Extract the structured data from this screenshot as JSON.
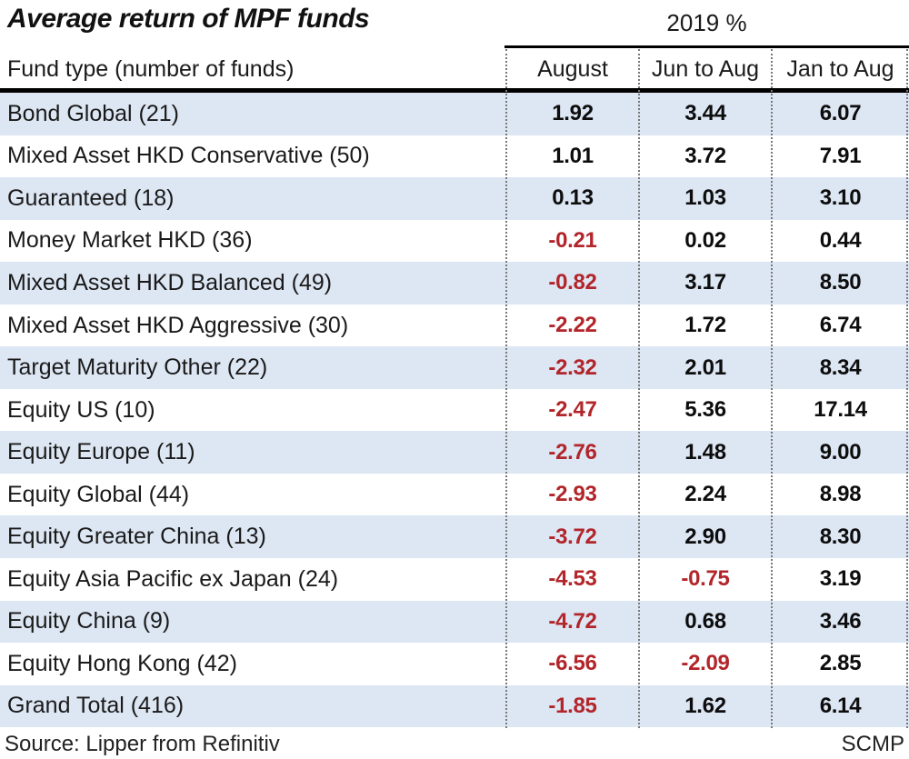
{
  "title": "Average return of MPF funds",
  "header": {
    "year_label": "2019 %",
    "fund_type_label": "Fund type (number of funds)",
    "columns": [
      "August",
      "Jun to Aug",
      "Jan to Aug"
    ]
  },
  "colors": {
    "alt_row_blue": "#dde6f3",
    "negative_red": "#b2252a",
    "text_black": "#1a1a1a",
    "rule_black": "#000000",
    "divider_gray": "#787878"
  },
  "footer": {
    "source": "Source: Lipper from Refinitiv",
    "credit": "SCMP"
  },
  "chart_data": {
    "type": "table",
    "title": "Average return of MPF funds",
    "unit": "2019 %",
    "columns": [
      "Fund type (number of funds)",
      "August",
      "Jun to Aug",
      "Jan to Aug"
    ],
    "rows": [
      {
        "fund_type": "Bond Global (21)",
        "august": "1.92",
        "jun_to_aug": "3.44",
        "jan_to_aug": "6.07"
      },
      {
        "fund_type": "Mixed Asset HKD Conservative (50)",
        "august": "1.01",
        "jun_to_aug": "3.72",
        "jan_to_aug": "7.91"
      },
      {
        "fund_type": "Guaranteed (18)",
        "august": "0.13",
        "jun_to_aug": "1.03",
        "jan_to_aug": "3.10"
      },
      {
        "fund_type": "Money Market HKD (36)",
        "august": "-0.21",
        "jun_to_aug": "0.02",
        "jan_to_aug": "0.44"
      },
      {
        "fund_type": "Mixed Asset HKD Balanced (49)",
        "august": "-0.82",
        "jun_to_aug": "3.17",
        "jan_to_aug": "8.50"
      },
      {
        "fund_type": "Mixed Asset HKD Aggressive (30)",
        "august": "-2.22",
        "jun_to_aug": "1.72",
        "jan_to_aug": "6.74"
      },
      {
        "fund_type": "Target Maturity Other (22)",
        "august": "-2.32",
        "jun_to_aug": "2.01",
        "jan_to_aug": "8.34"
      },
      {
        "fund_type": "Equity US (10)",
        "august": "-2.47",
        "jun_to_aug": "5.36",
        "jan_to_aug": "17.14"
      },
      {
        "fund_type": "Equity Europe (11)",
        "august": "-2.76",
        "jun_to_aug": "1.48",
        "jan_to_aug": "9.00"
      },
      {
        "fund_type": "Equity Global (44)",
        "august": "-2.93",
        "jun_to_aug": "2.24",
        "jan_to_aug": "8.98"
      },
      {
        "fund_type": "Equity Greater China (13)",
        "august": "-3.72",
        "jun_to_aug": "2.90",
        "jan_to_aug": "8.30"
      },
      {
        "fund_type": "Equity Asia Pacific ex Japan (24)",
        "august": "-4.53",
        "jun_to_aug": "-0.75",
        "jan_to_aug": "3.19"
      },
      {
        "fund_type": "Equity China (9)",
        "august": "-4.72",
        "jun_to_aug": "0.68",
        "jan_to_aug": "3.46"
      },
      {
        "fund_type": "Equity Hong Kong (42)",
        "august": "-6.56",
        "jun_to_aug": "-2.09",
        "jan_to_aug": "2.85"
      },
      {
        "fund_type": "Grand Total (416)",
        "august": "-1.85",
        "jun_to_aug": "1.62",
        "jan_to_aug": "6.14"
      }
    ]
  }
}
